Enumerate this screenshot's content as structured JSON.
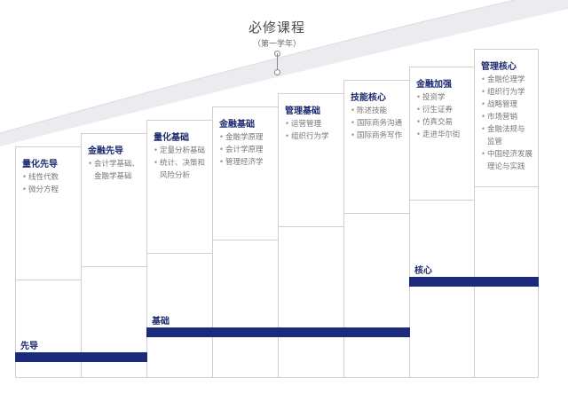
{
  "header": {
    "title": "必修课程",
    "subtitle": "（第一学年）"
  },
  "colors": {
    "accent": "#1b2a7a",
    "heading": "#1c2a6e",
    "item_text": "#777777",
    "curve": "#e9e9ee"
  },
  "columns": [
    {
      "title": "量化先导",
      "items": [
        [
          "线性代数"
        ],
        [
          "微分方程"
        ]
      ]
    },
    {
      "title": "金融先导",
      "items": [
        [
          "会计学基础、",
          "金融学基础"
        ]
      ]
    },
    {
      "title": "量化基础",
      "items": [
        [
          "定量分析基础"
        ],
        [
          "统计、决策和",
          "风险分析"
        ]
      ]
    },
    {
      "title": "金融基础",
      "items": [
        [
          "金融学原理"
        ],
        [
          "会计学原理"
        ],
        [
          "管理经济学"
        ]
      ]
    },
    {
      "title": "管理基础",
      "items": [
        [
          "运营管理"
        ],
        [
          "组织行为学"
        ]
      ]
    },
    {
      "title": "技能核心",
      "items": [
        [
          "陈述技能"
        ],
        [
          "国际商务沟通"
        ],
        [
          "国际商务写作"
        ]
      ]
    },
    {
      "title": "金融加强",
      "items": [
        [
          "投资学"
        ],
        [
          "衍生证券"
        ],
        [
          "仿真交易"
        ],
        [
          "走进华尔街"
        ]
      ]
    },
    {
      "title": "管理核心",
      "items": [
        [
          "金融伦理学"
        ],
        [
          "组织行为学"
        ],
        [
          "战略管理"
        ],
        [
          "市场营销"
        ],
        [
          "金融法规与",
          "监管"
        ],
        [
          "中国经济发展",
          "理论与实践"
        ]
      ]
    }
  ],
  "stages": [
    {
      "label": "先导"
    },
    {
      "label": "基础"
    },
    {
      "label": "核心"
    }
  ]
}
